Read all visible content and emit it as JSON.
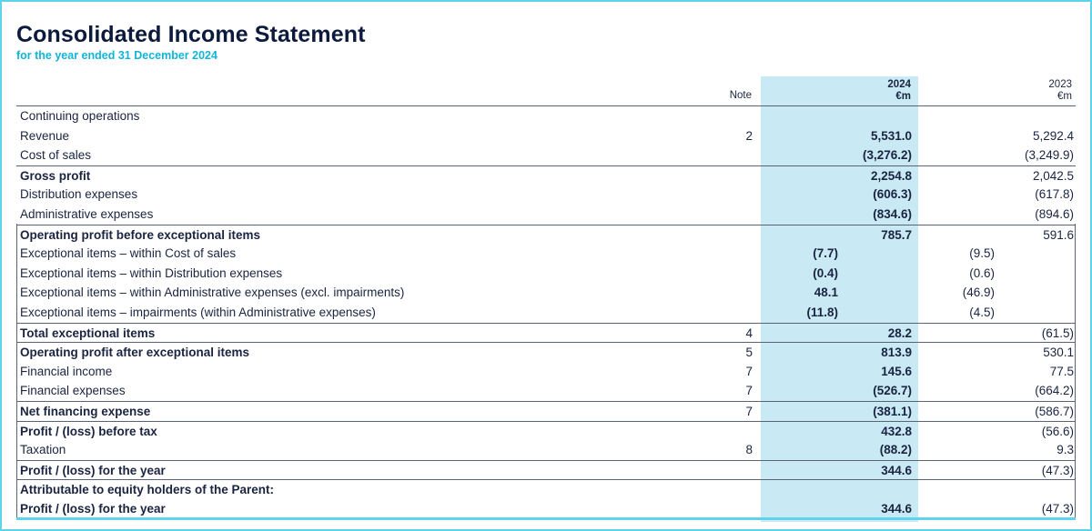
{
  "header": {
    "title": "Consolidated Income Statement",
    "subtitle": "for the year ended 31 December 2024"
  },
  "columns": {
    "note": "Note",
    "y2024": "2024",
    "y2024_unit": "€m",
    "y2023": "2023",
    "y2023_unit": "€m"
  },
  "rows": [
    {
      "label": "Continuing operations",
      "note": "",
      "ins24": "",
      "v24": "",
      "ins23": "",
      "v23": "",
      "bold": false,
      "line": false
    },
    {
      "label": "Revenue",
      "note": "2",
      "ins24": "",
      "v24": "5,531.0",
      "ins23": "",
      "v23": "5,292.4",
      "bold": false,
      "line": false
    },
    {
      "label": "Cost of sales",
      "note": "",
      "ins24": "",
      "v24": "(3,276.2)",
      "ins23": "",
      "v23": "(3,249.9)",
      "bold": false,
      "line": false
    },
    {
      "label": "Gross profit",
      "note": "",
      "ins24": "",
      "v24": "2,254.8",
      "ins23": "",
      "v23": "2,042.5",
      "bold": true,
      "line": true
    },
    {
      "label": "Distribution expenses",
      "note": "",
      "ins24": "",
      "v24": "(606.3)",
      "ins23": "",
      "v23": "(617.8)",
      "bold": false,
      "line": false
    },
    {
      "label": "Administrative expenses",
      "note": "",
      "ins24": "",
      "v24": "(834.6)",
      "ins23": "",
      "v23": "(894.6)",
      "bold": false,
      "line": false
    },
    {
      "label": "Operating profit before exceptional items",
      "note": "",
      "ins24": "",
      "v24": "785.7",
      "ins23": "",
      "v23": "591.6",
      "bold": true,
      "line": true
    },
    {
      "label": "Exceptional items – within Cost of sales",
      "note": "",
      "ins24": "(7.7)",
      "v24": "",
      "ins23": "(9.5)",
      "v23": "",
      "bold": false,
      "line": false
    },
    {
      "label": "Exceptional items – within Distribution expenses",
      "note": "",
      "ins24": "(0.4)",
      "v24": "",
      "ins23": "(0.6)",
      "v23": "",
      "bold": false,
      "line": false
    },
    {
      "label": "Exceptional items – within Administrative expenses (excl. impairments)",
      "note": "",
      "ins24": "48.1",
      "v24": "",
      "ins23": "(46.9)",
      "v23": "",
      "bold": false,
      "line": false
    },
    {
      "label": "Exceptional items – impairments (within Administrative expenses)",
      "note": "",
      "ins24": "(11.8)",
      "v24": "",
      "ins23": "(4.5)",
      "v23": "",
      "bold": false,
      "line": false
    },
    {
      "label": "Total exceptional items",
      "note": "4",
      "ins24": "",
      "v24": "28.2",
      "ins23": "",
      "v23": "(61.5)",
      "bold": true,
      "line": true
    },
    {
      "label": "Operating profit after exceptional items",
      "note": "5",
      "ins24": "",
      "v24": "813.9",
      "ins23": "",
      "v23": "530.1",
      "bold": true,
      "line": true
    },
    {
      "label": "Financial income",
      "note": "7",
      "ins24": "",
      "v24": "145.6",
      "ins23": "",
      "v23": "77.5",
      "bold": false,
      "line": false
    },
    {
      "label": "Financial expenses",
      "note": "7",
      "ins24": "",
      "v24": "(526.7)",
      "ins23": "",
      "v23": "(664.2)",
      "bold": false,
      "line": false
    },
    {
      "label": "Net financing expense",
      "note": "7",
      "ins24": "",
      "v24": "(381.1)",
      "ins23": "",
      "v23": "(586.7)",
      "bold": true,
      "line": true
    },
    {
      "label": "Profit / (loss) before tax",
      "note": "",
      "ins24": "",
      "v24": "432.8",
      "ins23": "",
      "v23": "(56.6)",
      "bold": true,
      "line": true
    },
    {
      "label": "Taxation",
      "note": "8",
      "ins24": "",
      "v24": "(88.2)",
      "ins23": "",
      "v23": "9.3",
      "bold": false,
      "line": false
    },
    {
      "label": "Profit / (loss) for the year",
      "note": "",
      "ins24": "",
      "v24": "344.6",
      "ins23": "",
      "v23": "(47.3)",
      "bold": true,
      "line": true
    },
    {
      "label": "Attributable to equity holders of the Parent:",
      "note": "",
      "ins24": "",
      "v24": "",
      "ins23": "",
      "v23": "",
      "bold": true,
      "line": true
    },
    {
      "label": "Profit / (loss) for the year",
      "note": "",
      "ins24": "",
      "v24": "344.6",
      "ins23": "",
      "v23": "(47.3)",
      "bold": true,
      "line": false
    }
  ],
  "colors": {
    "highlight": "#c9e9f5",
    "accent": "#12b4d6",
    "frame": "#5fd3ea",
    "text": "#1a2440"
  }
}
